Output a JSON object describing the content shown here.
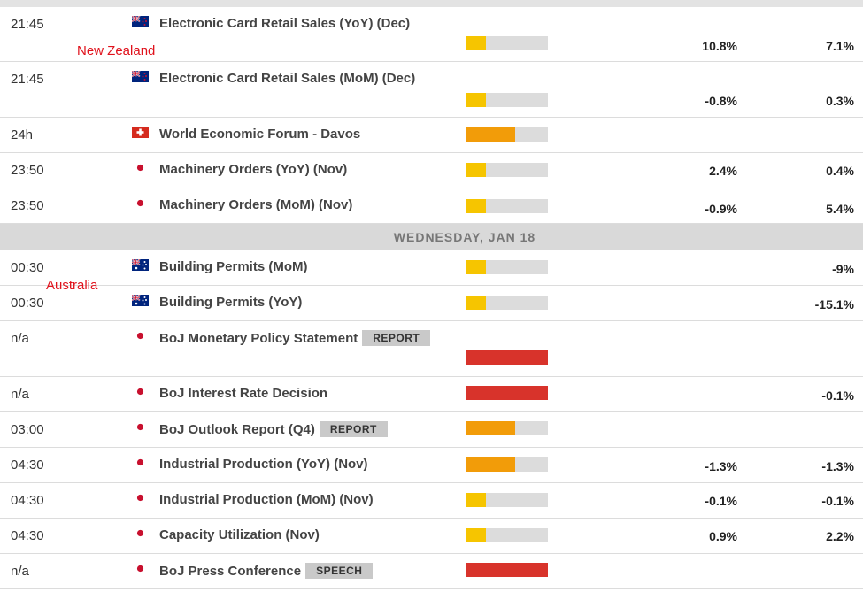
{
  "colors": {
    "low": "#f6c500",
    "medium": "#f29c09",
    "high": "#d8332b",
    "track": "#dcdcdc"
  },
  "day_separator": "WEDNESDAY, JAN 18",
  "annotations": {
    "new_zealand": "New Zealand",
    "australia": "Australia"
  },
  "events": [
    {
      "time": "21:45",
      "flag": "nz-flag-icon",
      "name": "Electronic Card Retail Sales (YoY) (Dec)",
      "tag": "",
      "importance": "low",
      "actual": "10.8%",
      "previous": "7.1%"
    },
    {
      "time": "21:45",
      "flag": "nz-flag-icon",
      "name": "Electronic Card Retail Sales (MoM) (Dec)",
      "tag": "",
      "importance": "low",
      "actual": "-0.8%",
      "previous": "0.3%"
    },
    {
      "time": "24h",
      "flag": "ch-flag-icon",
      "name": "World Economic Forum - Davos",
      "tag": "",
      "importance": "medium",
      "actual": "",
      "previous": ""
    },
    {
      "time": "23:50",
      "flag": "jp-flag-icon",
      "name": "Machinery Orders (YoY) (Nov)",
      "tag": "",
      "importance": "low",
      "actual": "2.4%",
      "previous": "0.4%"
    },
    {
      "time": "23:50",
      "flag": "jp-flag-icon",
      "name": "Machinery Orders (MoM) (Nov)",
      "tag": "",
      "importance": "low",
      "actual": "-0.9%",
      "previous": "5.4%"
    },
    {
      "time": "00:30",
      "flag": "au-flag-icon",
      "name": "Building Permits (MoM)",
      "tag": "",
      "importance": "low",
      "actual": "",
      "previous": "-9%"
    },
    {
      "time": "00:30",
      "flag": "au-flag-icon",
      "name": "Building Permits (YoY)",
      "tag": "",
      "importance": "low",
      "actual": "",
      "previous": "-15.1%"
    },
    {
      "time": "n/a",
      "flag": "jp-flag-icon",
      "name": "BoJ Monetary Policy Statement",
      "tag": "REPORT",
      "importance": "high",
      "actual": "",
      "previous": ""
    },
    {
      "time": "n/a",
      "flag": "jp-flag-icon",
      "name": "BoJ Interest Rate Decision",
      "tag": "",
      "importance": "high",
      "actual": "",
      "previous": "-0.1%"
    },
    {
      "time": "03:00",
      "flag": "jp-flag-icon",
      "name": "BoJ Outlook Report (Q4)",
      "tag": "REPORT",
      "importance": "medium",
      "actual": "",
      "previous": ""
    },
    {
      "time": "04:30",
      "flag": "jp-flag-icon",
      "name": "Industrial Production (YoY) (Nov)",
      "tag": "",
      "importance": "medium",
      "actual": "-1.3%",
      "previous": "-1.3%"
    },
    {
      "time": "04:30",
      "flag": "jp-flag-icon",
      "name": "Industrial Production (MoM) (Nov)",
      "tag": "",
      "importance": "low",
      "actual": "-0.1%",
      "previous": "-0.1%"
    },
    {
      "time": "04:30",
      "flag": "jp-flag-icon",
      "name": "Capacity Utilization (Nov)",
      "tag": "",
      "importance": "low",
      "actual": "0.9%",
      "previous": "2.2%"
    },
    {
      "time": "n/a",
      "flag": "jp-flag-icon",
      "name": "BoJ Press Conference",
      "tag": "SPEECH",
      "importance": "high",
      "actual": "",
      "previous": ""
    }
  ]
}
